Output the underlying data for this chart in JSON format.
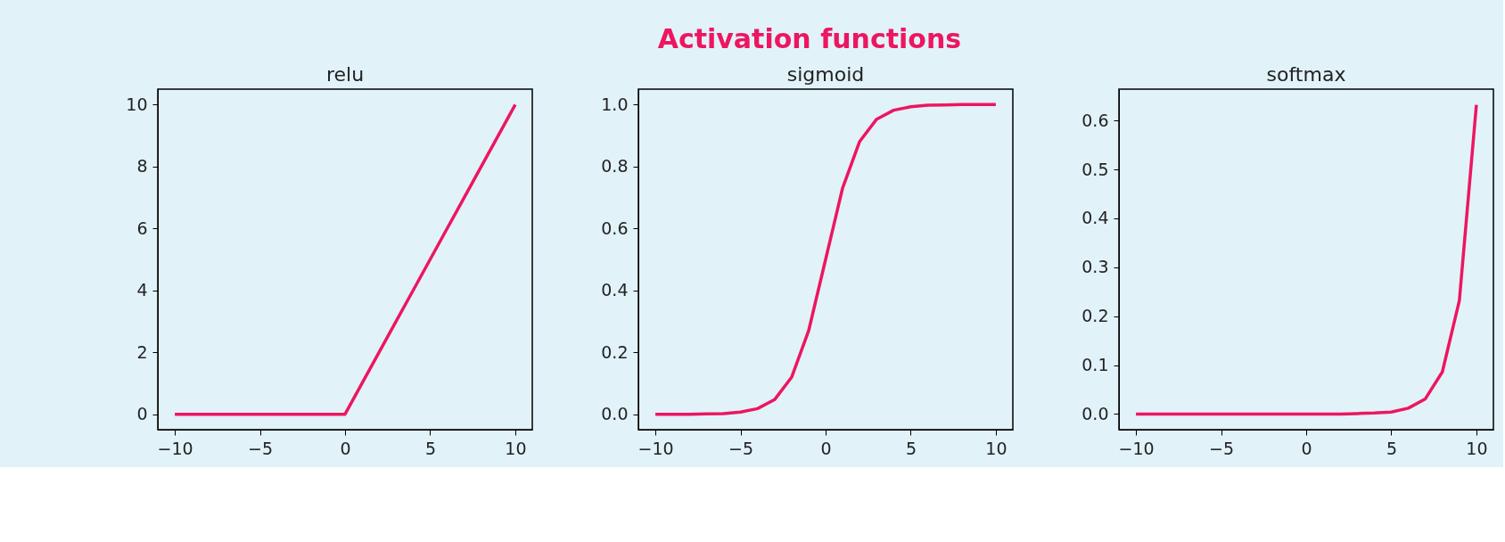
{
  "chart_data": [
    {
      "type": "line",
      "title": "relu",
      "annotations": [
        "Activation functions"
      ],
      "x": [
        -10,
        -9,
        -8,
        -7,
        -6,
        -5,
        -4,
        -3,
        -2,
        -1,
        0,
        1,
        2,
        3,
        4,
        5,
        6,
        7,
        8,
        9,
        10
      ],
      "series": [
        {
          "color": "#ed1660",
          "values": [
            0,
            0,
            0,
            0,
            0,
            0,
            0,
            0,
            0,
            0,
            0,
            1,
            2,
            3,
            4,
            5,
            6,
            7,
            8,
            9,
            10
          ]
        }
      ],
      "xlim": [
        -11,
        11
      ],
      "xticks": [
        -10,
        -5,
        0,
        5,
        10
      ],
      "ylim": [
        -0.5,
        10.5
      ],
      "yticks": [
        0,
        2,
        4,
        6,
        8,
        10
      ],
      "grid": false,
      "legend": false
    },
    {
      "type": "line",
      "title": "sigmoid",
      "x": [
        -10,
        -9,
        -8,
        -7,
        -6,
        -5,
        -4,
        -3,
        -2,
        -1,
        0,
        1,
        2,
        3,
        4,
        5,
        6,
        7,
        8,
        9,
        10
      ],
      "series": [
        {
          "color": "#ed1660",
          "values": [
            0.0,
            0.0,
            0.0,
            0.001,
            0.002,
            0.007,
            0.018,
            0.047,
            0.119,
            0.269,
            0.5,
            0.731,
            0.881,
            0.953,
            0.982,
            0.993,
            0.998,
            0.999,
            1.0,
            1.0,
            1.0
          ]
        }
      ],
      "xlim": [
        -11,
        11
      ],
      "xticks": [
        -10,
        -5,
        0,
        5,
        10
      ],
      "ylim": [
        -0.05,
        1.05
      ],
      "yticks": [
        {
          "value": 0,
          "label": "0.0"
        },
        {
          "value": 0.2,
          "label": "0.2"
        },
        {
          "value": 0.4,
          "label": "0.4"
        },
        {
          "value": 0.6,
          "label": "0.6"
        },
        {
          "value": 0.8,
          "label": "0.8"
        },
        {
          "value": 1,
          "label": "1.0"
        }
      ],
      "grid": false,
      "legend": false
    },
    {
      "type": "line",
      "title": "softmax",
      "x": [
        -10,
        -9,
        -8,
        -7,
        -6,
        -5,
        -4,
        -3,
        -2,
        -1,
        0,
        1,
        2,
        3,
        4,
        5,
        6,
        7,
        8,
        9,
        10
      ],
      "series": [
        {
          "color": "#ed1660",
          "values": [
            0,
            0,
            0,
            0,
            0,
            0,
            0,
            0,
            0,
            0,
            0,
            0,
            0,
            0.001,
            0.002,
            0.004,
            0.012,
            0.031,
            0.086,
            0.232,
            0.632
          ]
        }
      ],
      "xlim": [
        -11,
        11
      ],
      "xticks": [
        -10,
        -5,
        0,
        5,
        10
      ],
      "ylim": [
        -0.032,
        0.664
      ],
      "yticks": [
        {
          "value": 0,
          "label": "0.0"
        },
        {
          "value": 0.1,
          "label": "0.1"
        },
        {
          "value": 0.2,
          "label": "0.2"
        },
        {
          "value": 0.3,
          "label": "0.3"
        },
        {
          "value": 0.4,
          "label": "0.4"
        },
        {
          "value": 0.5,
          "label": "0.5"
        },
        {
          "value": 0.6,
          "label": "0.6"
        }
      ],
      "grid": false,
      "legend": false
    }
  ]
}
